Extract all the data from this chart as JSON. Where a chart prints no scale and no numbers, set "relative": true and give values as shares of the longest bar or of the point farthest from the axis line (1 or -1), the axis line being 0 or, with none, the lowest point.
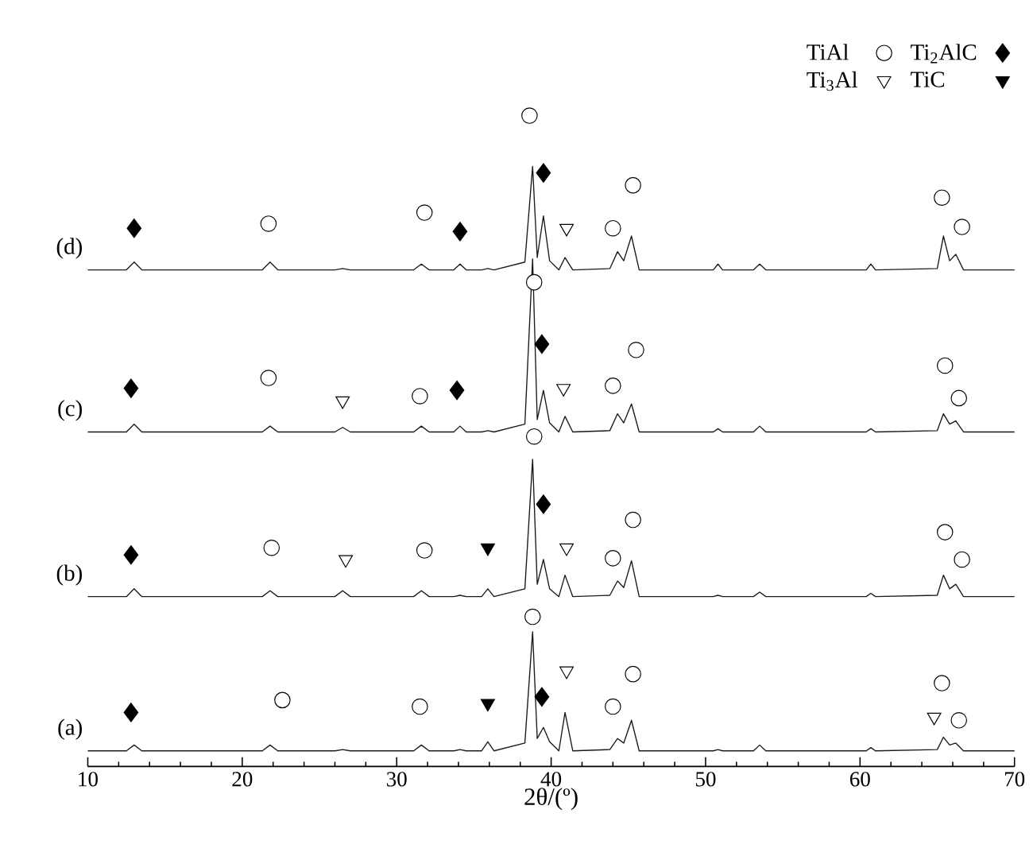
{
  "chart_data": {
    "type": "line",
    "relative": true,
    "xlabel": "2θ/(º)",
    "xlim": [
      10,
      70
    ],
    "xticks": [
      10,
      20,
      30,
      40,
      50,
      60,
      70
    ],
    "legend": "top right",
    "x": [
      10,
      12.5,
      13,
      13.5,
      17,
      21.3,
      21.8,
      22.3,
      26,
      26.5,
      27,
      31.1,
      31.6,
      32.1,
      33.7,
      34.1,
      34.5,
      35.5,
      35.9,
      36.3,
      38.3,
      38.8,
      39.1,
      39.5,
      39.9,
      40.5,
      40.9,
      41.4,
      43.8,
      44.3,
      44.7,
      45.2,
      45.7,
      50.5,
      50.8,
      51.1,
      53.1,
      53.5,
      53.9,
      60.4,
      60.7,
      61,
      65,
      65.4,
      65.8,
      66.2,
      66.7,
      70
    ],
    "series": [
      {
        "name": "(a)",
        "color": "#1a1a1a",
        "values": [
          0.024,
          0.024,
          0.033,
          0.024,
          0.024,
          0.024,
          0.033,
          0.024,
          0.024,
          0.026,
          0.024,
          0.024,
          0.033,
          0.024,
          0.024,
          0.026,
          0.024,
          0.024,
          0.038,
          0.024,
          0.036,
          0.207,
          0.043,
          0.06,
          0.038,
          0.024,
          0.083,
          0.024,
          0.026,
          0.043,
          0.036,
          0.071,
          0.024,
          0.024,
          0.026,
          0.024,
          0.024,
          0.033,
          0.024,
          0.024,
          0.029,
          0.024,
          0.026,
          0.045,
          0.033,
          0.036,
          0.024,
          0.024
        ]
      },
      {
        "name": "(b)",
        "color": "#1a1a1a",
        "values": [
          0.261,
          0.261,
          0.273,
          0.261,
          0.261,
          0.261,
          0.27,
          0.261,
          0.261,
          0.27,
          0.261,
          0.261,
          0.27,
          0.261,
          0.261,
          0.263,
          0.261,
          0.261,
          0.273,
          0.261,
          0.273,
          0.472,
          0.28,
          0.318,
          0.273,
          0.261,
          0.294,
          0.261,
          0.263,
          0.285,
          0.275,
          0.316,
          0.261,
          0.261,
          0.263,
          0.261,
          0.261,
          0.268,
          0.261,
          0.261,
          0.266,
          0.261,
          0.263,
          0.294,
          0.273,
          0.28,
          0.261,
          0.261
        ]
      },
      {
        "name": "(c)",
        "color": "#1a1a1a",
        "values": [
          0.514,
          0.514,
          0.526,
          0.514,
          0.514,
          0.514,
          0.523,
          0.514,
          0.514,
          0.521,
          0.514,
          0.514,
          0.523,
          0.514,
          0.514,
          0.523,
          0.514,
          0.514,
          0.516,
          0.514,
          0.526,
          0.78,
          0.533,
          0.578,
          0.528,
          0.514,
          0.538,
          0.514,
          0.516,
          0.542,
          0.528,
          0.557,
          0.514,
          0.514,
          0.519,
          0.514,
          0.514,
          0.523,
          0.514,
          0.514,
          0.519,
          0.514,
          0.516,
          0.542,
          0.526,
          0.531,
          0.514,
          0.514
        ]
      },
      {
        "name": "(d)",
        "color": "#1a1a1a",
        "values": [
          0.763,
          0.763,
          0.775,
          0.763,
          0.763,
          0.763,
          0.775,
          0.763,
          0.763,
          0.765,
          0.763,
          0.763,
          0.772,
          0.763,
          0.763,
          0.772,
          0.763,
          0.763,
          0.765,
          0.763,
          0.775,
          0.922,
          0.782,
          0.846,
          0.777,
          0.763,
          0.782,
          0.763,
          0.765,
          0.791,
          0.777,
          0.815,
          0.763,
          0.763,
          0.772,
          0.763,
          0.763,
          0.772,
          0.763,
          0.763,
          0.772,
          0.763,
          0.765,
          0.815,
          0.777,
          0.787,
          0.763,
          0.763
        ]
      },
      {
        "name": "TiAl",
        "type": "scatter",
        "marker": "circle",
        "color": "#ffffff",
        "x": [
          21.7,
          31.8,
          38.6,
          44.0,
          45.3,
          65.3,
          66.6,
          21.7,
          31.5,
          38.9,
          44.0,
          45.5,
          65.5,
          66.4,
          21.9,
          31.8,
          38.9,
          44.0,
          45.3,
          65.5,
          66.6,
          22.6,
          31.5,
          38.8,
          44.0,
          45.3,
          65.3,
          66.4
        ],
        "values": [
          0.834,
          0.851,
          1.0,
          0.827,
          0.893,
          0.874,
          0.829,
          0.597,
          0.569,
          0.744,
          0.585,
          0.64,
          0.616,
          0.566,
          0.336,
          0.332,
          0.507,
          0.32,
          0.379,
          0.36,
          0.318,
          0.102,
          0.092,
          0.23,
          0.092,
          0.142,
          0.128,
          0.071
        ]
      },
      {
        "name": "Ti$_{3}$Al",
        "type": "scatter",
        "marker": "triangle",
        "color": "#ffffff",
        "x": [
          41.0,
          26.5,
          40.8,
          26.7,
          41.0,
          41.0,
          64.8
        ],
        "values": [
          0.827,
          0.562,
          0.581,
          0.318,
          0.336,
          0.147,
          0.076
        ]
      },
      {
        "name": "Ti$_{2}$AlC",
        "type": "scatter",
        "marker": "diamond",
        "color": "#000000",
        "x": [
          13.0,
          34.1,
          39.5,
          12.8,
          33.9,
          39.4,
          12.8,
          39.5,
          12.8,
          39.4
        ],
        "values": [
          0.827,
          0.822,
          0.912,
          0.581,
          0.578,
          0.649,
          0.325,
          0.403,
          0.083,
          0.107
        ]
      },
      {
        "name": "TiC",
        "type": "scatter",
        "marker": "triangle",
        "color": "#000000",
        "x": [
          35.9,
          35.9
        ],
        "values": [
          0.336,
          0.097
        ]
      }
    ]
  }
}
